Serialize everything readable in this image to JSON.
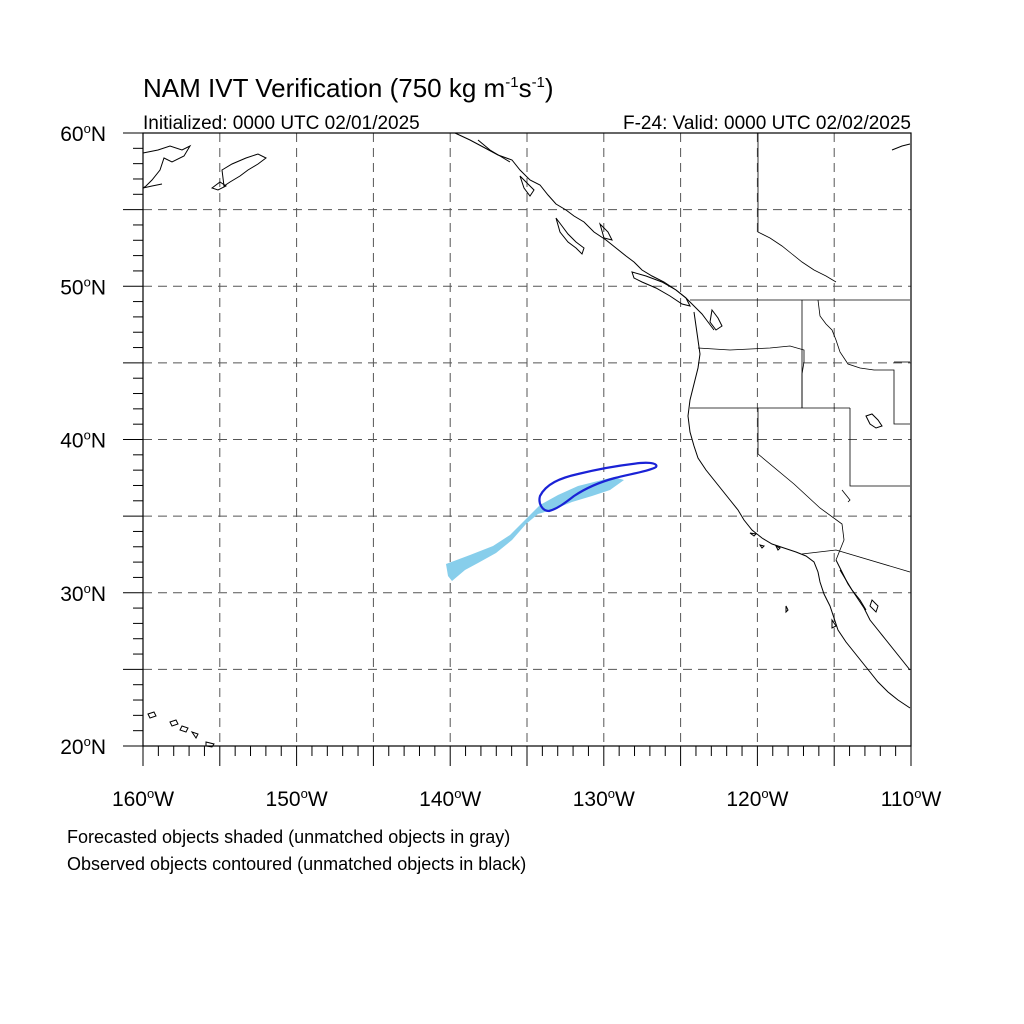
{
  "title": {
    "main": "NAM IVT Verification (750 kg m",
    "sup1": "-1",
    "mid": "s",
    "sup2": "-1",
    "end": ")"
  },
  "initialized": "Initialized: 0000 UTC 02/01/2025",
  "valid": "F-24: Valid: 0000 UTC 02/02/2025",
  "lat_labels": [
    {
      "deg": "60",
      "hemi": "N",
      "value": 60
    },
    {
      "deg": "50",
      "hemi": "N",
      "value": 50
    },
    {
      "deg": "40",
      "hemi": "N",
      "value": 40
    },
    {
      "deg": "30",
      "hemi": "N",
      "value": 30
    },
    {
      "deg": "20",
      "hemi": "N",
      "value": 20
    }
  ],
  "lon_labels": [
    {
      "deg": "160",
      "hemi": "W",
      "value": -160
    },
    {
      "deg": "150",
      "hemi": "W",
      "value": -150
    },
    {
      "deg": "140",
      "hemi": "W",
      "value": -140
    },
    {
      "deg": "130",
      "hemi": "W",
      "value": -130
    },
    {
      "deg": "120",
      "hemi": "W",
      "value": -120
    },
    {
      "deg": "110",
      "hemi": "W",
      "value": -110
    }
  ],
  "notes": [
    "Forecasted objects shaded (unmatched objects in gray)",
    "Observed objects contoured (unmatched objects in black)"
  ],
  "colors": {
    "forecast_fill": "#87CEEB",
    "observed_contour": "#1a22d6",
    "coast": "#000000",
    "grid": "#555555"
  }
}
